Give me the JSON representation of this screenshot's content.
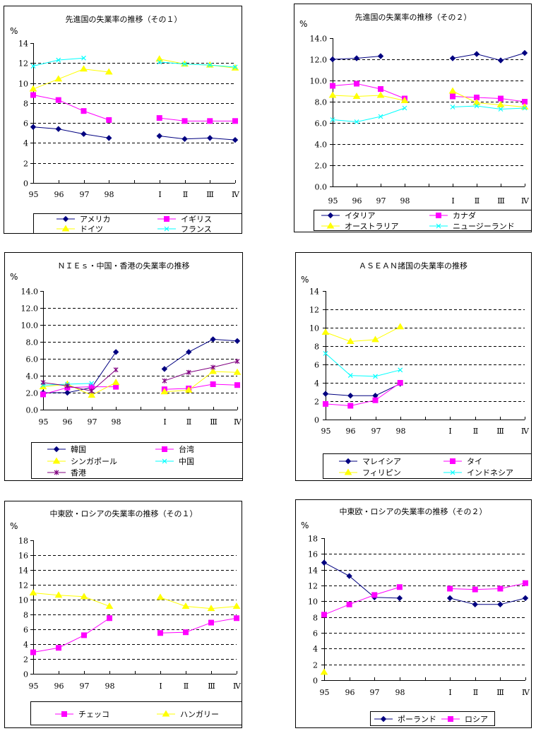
{
  "chart_data": [
    {
      "type": "line",
      "title": "先進国の失業率の推移（その１）",
      "ylabel": "%",
      "xlabel": "",
      "ylim": [
        0,
        14
      ],
      "yticks": [
        "0",
        "2",
        "4",
        "6",
        "8",
        "10",
        "12",
        "14"
      ],
      "grid": true,
      "categories": [
        "95",
        "96",
        "97",
        "98",
        "",
        "I",
        "II",
        "III",
        "IV"
      ],
      "category_labels": [
        "95",
        "96",
        "97",
        "98",
        "",
        "Ⅰ",
        "Ⅱ",
        "Ⅲ",
        "Ⅳ"
      ],
      "legend_position": "bottom",
      "series": [
        {
          "name": "アメリカ",
          "color": "#000080",
          "marker": "diamond",
          "values": [
            5.6,
            5.4,
            4.9,
            4.5,
            null,
            4.7,
            4.4,
            4.5,
            4.3
          ]
        },
        {
          "name": "イギリス",
          "color": "#FF00FF",
          "marker": "square",
          "values": [
            8.8,
            8.3,
            7.2,
            6.3,
            null,
            6.5,
            6.2,
            6.2,
            6.2
          ]
        },
        {
          "name": "ドイツ",
          "color": "#FFFF00",
          "marker": "triangle",
          "values": [
            9.4,
            10.4,
            11.4,
            11.1,
            null,
            12.4,
            11.9,
            11.8,
            11.5
          ]
        },
        {
          "name": "フランス",
          "color": "#00FFFF",
          "marker": "x",
          "values": [
            11.7,
            12.3,
            12.5,
            null,
            null,
            12.1,
            11.9,
            11.8,
            11.6
          ]
        }
      ]
    },
    {
      "type": "line",
      "title": "先進国の失業率の推移（その２）",
      "ylabel": "%",
      "xlabel": "",
      "ylim": [
        0,
        14
      ],
      "yticks": [
        "0.0",
        "2.0",
        "4.0",
        "6.0",
        "8.0",
        "10.0",
        "12.0",
        "14.0"
      ],
      "grid": true,
      "categories": [
        "95",
        "96",
        "97",
        "98",
        "",
        "I",
        "II",
        "III",
        "IV"
      ],
      "category_labels": [
        "95",
        "96",
        "97",
        "98",
        "",
        "Ⅰ",
        "Ⅱ",
        "Ⅲ",
        "Ⅳ"
      ],
      "legend_position": "bottom",
      "series": [
        {
          "name": "イタリア",
          "color": "#000080",
          "marker": "diamond",
          "values": [
            12.0,
            12.1,
            12.3,
            null,
            null,
            12.1,
            12.5,
            11.9,
            12.6
          ]
        },
        {
          "name": "カナダ",
          "color": "#FF00FF",
          "marker": "square",
          "values": [
            9.5,
            9.7,
            9.2,
            8.3,
            null,
            8.5,
            8.4,
            8.3,
            8.0
          ]
        },
        {
          "name": "オーストラリア",
          "color": "#FFFF00",
          "marker": "triangle",
          "values": [
            8.6,
            8.5,
            8.6,
            8.1,
            null,
            9.0,
            7.9,
            7.7,
            7.5
          ]
        },
        {
          "name": "ニュージーランド",
          "color": "#00FFFF",
          "marker": "x",
          "values": [
            6.3,
            6.1,
            6.6,
            7.4,
            null,
            7.5,
            7.6,
            7.3,
            7.4
          ]
        }
      ]
    },
    {
      "type": "line",
      "title": "ＮＩＥｓ・中国・香港の失業率の推移",
      "ylabel": "%",
      "xlabel": "",
      "ylim": [
        0,
        14
      ],
      "yticks": [
        "0.0",
        "2.0",
        "4.0",
        "6.0",
        "8.0",
        "10.0",
        "12.0",
        "14.0"
      ],
      "grid": true,
      "categories": [
        "95",
        "96",
        "97",
        "98",
        "",
        "I",
        "II",
        "III",
        "IV"
      ],
      "category_labels": [
        "95",
        "96",
        "97",
        "98",
        "",
        "Ⅰ",
        "Ⅱ",
        "Ⅲ",
        "Ⅳ"
      ],
      "legend_position": "bottom",
      "series": [
        {
          "name": "韓国",
          "color": "#000080",
          "marker": "diamond",
          "values": [
            2.0,
            2.0,
            2.6,
            6.8,
            null,
            4.8,
            6.8,
            8.3,
            8.1
          ]
        },
        {
          "name": "台湾",
          "color": "#FF00FF",
          "marker": "square",
          "values": [
            1.8,
            2.6,
            2.7,
            2.7,
            null,
            2.4,
            2.5,
            3.0,
            2.9
          ]
        },
        {
          "name": "シンガポール",
          "color": "#FFFF00",
          "marker": "triangle",
          "values": [
            2.7,
            3.0,
            1.7,
            3.2,
            null,
            2.1,
            2.3,
            4.5,
            4.4
          ]
        },
        {
          "name": "中国",
          "color": "#00FFFF",
          "marker": "x",
          "values": [
            2.9,
            3.0,
            3.1,
            null,
            null,
            null,
            null,
            null,
            null
          ]
        },
        {
          "name": "香港",
          "color": "#800080",
          "marker": "star",
          "values": [
            3.2,
            2.8,
            2.2,
            4.7,
            null,
            3.4,
            4.4,
            5.0,
            5.7
          ]
        }
      ]
    },
    {
      "type": "line",
      "title": "ＡＳＥＡＮ諸国の失業率の推移",
      "ylabel": "%",
      "xlabel": "",
      "ylim": [
        0,
        14
      ],
      "yticks": [
        "0",
        "2",
        "4",
        "6",
        "8",
        "10",
        "12",
        "14"
      ],
      "grid": true,
      "categories": [
        "95",
        "96",
        "97",
        "98",
        "",
        "I",
        "II",
        "III",
        "IV"
      ],
      "category_labels": [
        "95",
        "96",
        "97",
        "98",
        "",
        "Ⅰ",
        "Ⅱ",
        "Ⅲ",
        "Ⅳ"
      ],
      "legend_position": "bottom",
      "series": [
        {
          "name": "マレイシア",
          "color": "#000080",
          "marker": "diamond",
          "values": [
            2.8,
            2.6,
            2.6,
            3.9,
            null,
            null,
            null,
            null,
            null
          ]
        },
        {
          "name": "タイ",
          "color": "#FF00FF",
          "marker": "square",
          "values": [
            1.7,
            1.5,
            2.1,
            4.0,
            null,
            null,
            null,
            null,
            null
          ]
        },
        {
          "name": "フィリピン",
          "color": "#FFFF00",
          "marker": "triangle",
          "values": [
            9.5,
            8.5,
            8.7,
            10.1,
            null,
            null,
            null,
            null,
            null
          ]
        },
        {
          "name": "インドネシア",
          "color": "#00FFFF",
          "marker": "x",
          "values": [
            7.2,
            4.8,
            4.7,
            5.4,
            null,
            null,
            null,
            null,
            null
          ]
        }
      ]
    },
    {
      "type": "line",
      "title": "中東欧・ロシアの失業率の推移（その１）",
      "ylabel": "%",
      "xlabel": "",
      "ylim": [
        0,
        18
      ],
      "yticks": [
        "0",
        "2",
        "4",
        "6",
        "8",
        "10",
        "12",
        "14",
        "16",
        "18"
      ],
      "grid": true,
      "categories": [
        "95",
        "96",
        "97",
        "98",
        "",
        "I",
        "II",
        "III",
        "IV"
      ],
      "category_labels": [
        "95",
        "96",
        "97",
        "98",
        "",
        "Ⅰ",
        "Ⅱ",
        "Ⅲ",
        "Ⅳ"
      ],
      "legend_position": "bottom",
      "series": [
        {
          "name": "チェッコ",
          "color": "#FF00FF",
          "marker": "square",
          "values": [
            2.9,
            3.5,
            5.2,
            7.5,
            null,
            5.5,
            5.6,
            6.9,
            7.5
          ]
        },
        {
          "name": "ハンガリー",
          "color": "#FFFF00",
          "marker": "triangle",
          "values": [
            10.9,
            10.6,
            10.4,
            9.1,
            null,
            10.3,
            9.1,
            8.8,
            9.1
          ]
        }
      ]
    },
    {
      "type": "line",
      "title": "中東欧・ロシアの失業率の推移（その２）",
      "ylabel": "%",
      "xlabel": "",
      "ylim": [
        0,
        18
      ],
      "yticks": [
        "0",
        "2",
        "4",
        "6",
        "8",
        "10",
        "12",
        "14",
        "16",
        "18"
      ],
      "grid": true,
      "categories": [
        "95",
        "96",
        "97",
        "98",
        "",
        "I",
        "II",
        "III",
        "IV"
      ],
      "category_labels": [
        "95",
        "96",
        "97",
        "98",
        "",
        "Ⅰ",
        "Ⅱ",
        "Ⅲ",
        "Ⅳ"
      ],
      "legend_position": "bottom",
      "stray_points": [
        {
          "color": "#FFFF00",
          "marker": "triangle",
          "category": "95",
          "value": 1.0
        }
      ],
      "series": [
        {
          "name": "ポーランド",
          "color": "#000080",
          "marker": "diamond",
          "values": [
            14.9,
            13.2,
            10.5,
            10.4,
            null,
            10.4,
            9.6,
            9.6,
            10.4
          ]
        },
        {
          "name": "ロシア",
          "color": "#FF00FF",
          "marker": "square",
          "values": [
            8.3,
            9.6,
            10.8,
            11.8,
            null,
            11.6,
            11.5,
            11.6,
            12.3
          ]
        }
      ]
    }
  ]
}
